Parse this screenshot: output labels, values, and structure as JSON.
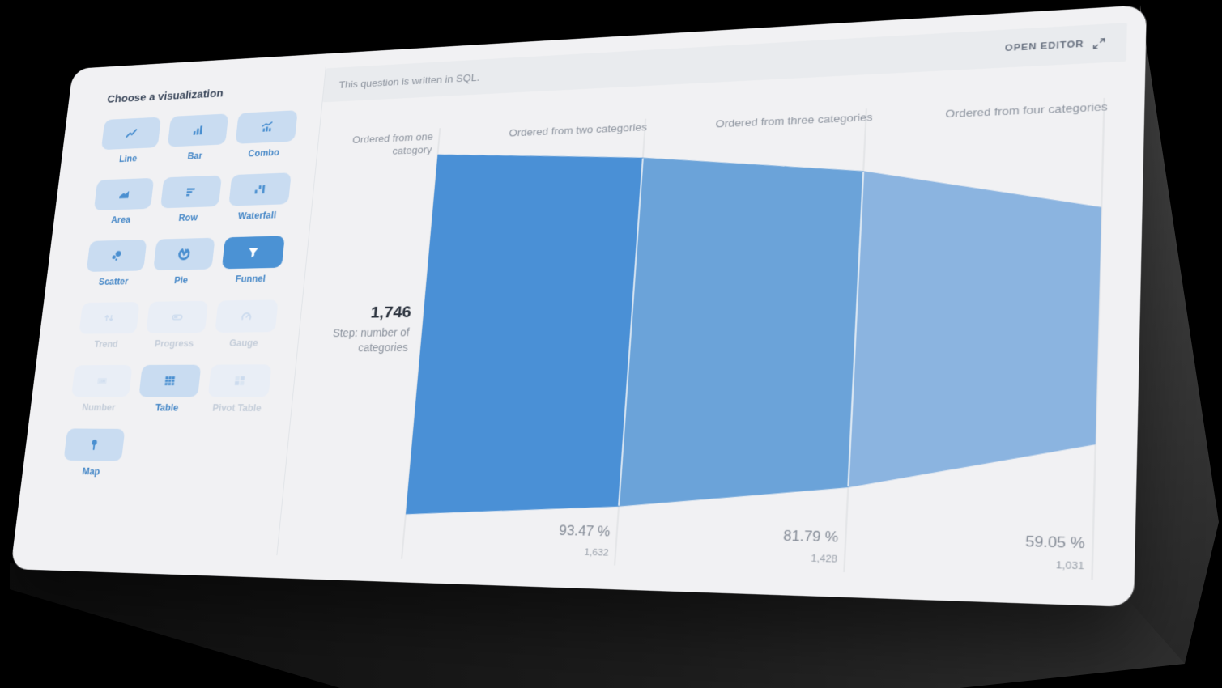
{
  "header": {
    "open_editor_label": "OPEN EDITOR",
    "sql_notice": "This question is written in SQL."
  },
  "sidebar": {
    "title": "Choose a visualization",
    "items": [
      {
        "label": "Line",
        "icon": "line-chart-icon",
        "state": "normal"
      },
      {
        "label": "Bar",
        "icon": "bar-chart-icon",
        "state": "normal"
      },
      {
        "label": "Combo",
        "icon": "combo-chart-icon",
        "state": "normal"
      },
      {
        "label": "Area",
        "icon": "area-chart-icon",
        "state": "normal"
      },
      {
        "label": "Row",
        "icon": "row-chart-icon",
        "state": "normal"
      },
      {
        "label": "Waterfall",
        "icon": "waterfall-chart-icon",
        "state": "normal"
      },
      {
        "label": "Scatter",
        "icon": "scatter-chart-icon",
        "state": "normal"
      },
      {
        "label": "Pie",
        "icon": "pie-chart-icon",
        "state": "normal"
      },
      {
        "label": "Funnel",
        "icon": "funnel-chart-icon",
        "state": "selected"
      },
      {
        "label": "Trend",
        "icon": "trend-icon",
        "state": "disabled"
      },
      {
        "label": "Progress",
        "icon": "progress-icon",
        "state": "disabled"
      },
      {
        "label": "Gauge",
        "icon": "gauge-icon",
        "state": "disabled"
      },
      {
        "label": "Number",
        "icon": "number-icon",
        "state": "disabled"
      },
      {
        "label": "Table",
        "icon": "table-icon",
        "state": "normal"
      },
      {
        "label": "Pivot Table",
        "icon": "pivot-table-icon",
        "state": "disabled"
      },
      {
        "label": "Map",
        "icon": "map-pin-icon",
        "state": "normal"
      }
    ]
  },
  "chart_data": {
    "type": "funnel",
    "categories": [
      "Ordered from one category",
      "Ordered from two categories",
      "Ordered from three categories",
      "Ordered from four categories"
    ],
    "values": [
      1746,
      1632,
      1428,
      1031
    ],
    "value_labels": [
      "1,746",
      "1,632",
      "1,428",
      "1,031"
    ],
    "percent_labels": [
      "93.47 %",
      "81.79 %",
      "59.05 %"
    ],
    "step_caption": "Step: number of categories",
    "segment_colors": [
      "#4a90d6",
      "#6ba3d9",
      "#8bb4e0"
    ],
    "gridline_color": "#d8dadd",
    "legend_position": "none"
  }
}
